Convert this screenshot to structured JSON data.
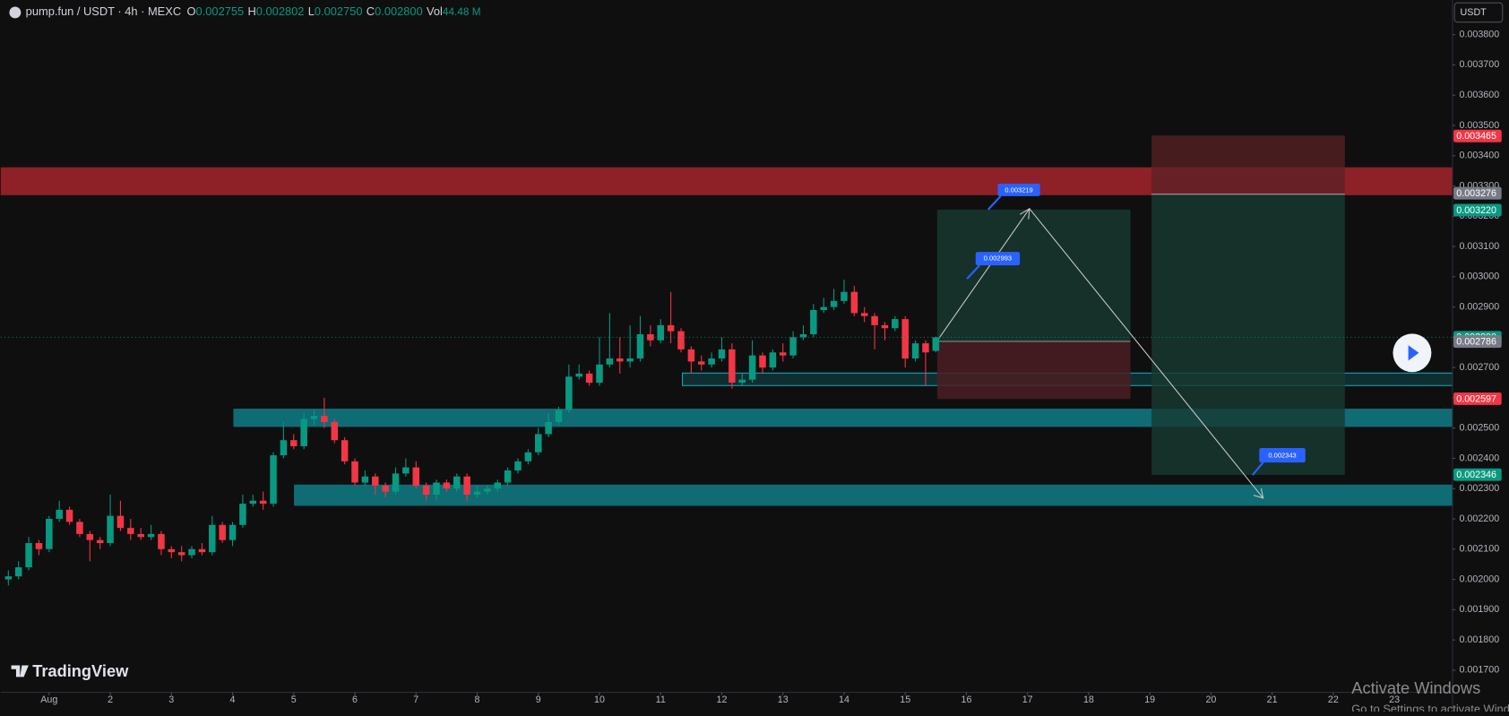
{
  "chart_data": {
    "type": "candlestick",
    "header": {
      "symbol": "pump.fun / USDT · 4h · MEXC",
      "o_label": "O",
      "o": "0.002755",
      "h_label": "H",
      "h": "0.002802",
      "l_label": "L",
      "l": "0.002750",
      "c_label": "C",
      "c": "0.002800",
      "vol_label": "Vol",
      "vol": "44.48 M"
    },
    "currency_button": "USDT",
    "up_color": "#089981",
    "down_color": "#f23645",
    "grid": false,
    "xlim": [
      -0.75,
      141.7
    ],
    "ylim": [
      0.001627,
      0.0039144
    ],
    "xticks": [
      {
        "value": 4,
        "label": "Aug"
      },
      {
        "value": 10,
        "label": "2"
      },
      {
        "value": 16,
        "label": "3"
      },
      {
        "value": 22,
        "label": "4"
      },
      {
        "value": 28,
        "label": "5"
      },
      {
        "value": 34,
        "label": "6"
      },
      {
        "value": 40,
        "label": "7"
      },
      {
        "value": 46,
        "label": "8"
      },
      {
        "value": 52,
        "label": "9"
      },
      {
        "value": 58,
        "label": "10"
      },
      {
        "value": 64,
        "label": "11"
      },
      {
        "value": 70,
        "label": "12"
      },
      {
        "value": 76,
        "label": "13"
      },
      {
        "value": 82,
        "label": "14"
      },
      {
        "value": 88,
        "label": "15"
      },
      {
        "value": 94,
        "label": "16"
      },
      {
        "value": 100,
        "label": "17"
      },
      {
        "value": 106,
        "label": "18"
      },
      {
        "value": 112,
        "label": "19"
      },
      {
        "value": 118,
        "label": "20"
      },
      {
        "value": 124,
        "label": "21"
      },
      {
        "value": 130,
        "label": "22"
      },
      {
        "value": 136,
        "label": "23"
      }
    ],
    "yticks": [
      {
        "value": 0.0017,
        "label": "0.001700"
      },
      {
        "value": 0.0018,
        "label": "0.001800"
      },
      {
        "value": 0.0019,
        "label": "0.001900"
      },
      {
        "value": 0.002,
        "label": "0.002000"
      },
      {
        "value": 0.0021,
        "label": "0.002100"
      },
      {
        "value": 0.0022,
        "label": "0.002200"
      },
      {
        "value": 0.0023,
        "label": "0.002300"
      },
      {
        "value": 0.0024,
        "label": "0.002400"
      },
      {
        "value": 0.0025,
        "label": "0.002500"
      },
      {
        "value": 0.0026,
        "label": "0.002600"
      },
      {
        "value": 0.0027,
        "label": "0.002700"
      },
      {
        "value": 0.0028,
        "label": "0.002800"
      },
      {
        "value": 0.0029,
        "label": "0.002900"
      },
      {
        "value": 0.003,
        "label": "0.003000"
      },
      {
        "value": 0.0031,
        "label": "0.003100"
      },
      {
        "value": 0.0032,
        "label": "0.003200"
      },
      {
        "value": 0.0033,
        "label": "0.003300"
      },
      {
        "value": 0.0034,
        "label": "0.003400"
      },
      {
        "value": 0.0035,
        "label": "0.003500"
      },
      {
        "value": 0.0036,
        "label": "0.003600"
      },
      {
        "value": 0.0037,
        "label": "0.003700"
      },
      {
        "value": 0.0038,
        "label": "0.003800"
      }
    ],
    "x": [
      0,
      1,
      2,
      3,
      4,
      5,
      6,
      7,
      8,
      9,
      10,
      11,
      12,
      13,
      14,
      15,
      16,
      17,
      18,
      19,
      20,
      21,
      22,
      23,
      24,
      25,
      26,
      27,
      28,
      29,
      30,
      31,
      32,
      33,
      34,
      35,
      36,
      37,
      38,
      39,
      40,
      41,
      42,
      43,
      44,
      45,
      46,
      47,
      48,
      49,
      50,
      51,
      52,
      53,
      54,
      55,
      56,
      57,
      58,
      59,
      60,
      61,
      62,
      63,
      64,
      65,
      66,
      67,
      68,
      69,
      70,
      71,
      72,
      73,
      74,
      75,
      76,
      77,
      78,
      79,
      80,
      81,
      82,
      83,
      84,
      85,
      86,
      87,
      88,
      89,
      90,
      91
    ],
    "open": [
      0.002,
      0.00201,
      0.00204,
      0.00212,
      0.0021,
      0.0022,
      0.00223,
      0.00219,
      0.00215,
      0.00213,
      0.00212,
      0.00221,
      0.00217,
      0.00215,
      0.00214,
      0.00215,
      0.0021,
      0.00209,
      0.00208,
      0.0021,
      0.00209,
      0.00218,
      0.00213,
      0.00218,
      0.00225,
      0.00226,
      0.00225,
      0.00241,
      0.00246,
      0.00244,
      0.00253,
      0.00254,
      0.00252,
      0.00246,
      0.00239,
      0.00232,
      0.00234,
      0.00231,
      0.00229,
      0.00235,
      0.00237,
      0.00231,
      0.00228,
      0.00232,
      0.0023,
      0.00234,
      0.00228,
      0.00229,
      0.0023,
      0.00232,
      0.00236,
      0.00239,
      0.00242,
      0.00248,
      0.00252,
      0.00256,
      0.00267,
      0.00268,
      0.00265,
      0.00271,
      0.00273,
      0.00272,
      0.00273,
      0.00281,
      0.00279,
      0.00284,
      0.00282,
      0.00276,
      0.00272,
      0.00271,
      0.00273,
      0.00276,
      0.00265,
      0.00266,
      0.00274,
      0.0027,
      0.00275,
      0.00274,
      0.0028,
      0.00281,
      0.00289,
      0.0029,
      0.00292,
      0.00295,
      0.00288,
      0.00287,
      0.00284,
      0.00283,
      0.00286,
      0.00273,
      0.00278,
      0.002755
    ],
    "high": [
      0.00203,
      0.00206,
      0.00214,
      0.00213,
      0.00221,
      0.00226,
      0.00224,
      0.0022,
      0.00216,
      0.00214,
      0.00228,
      0.00226,
      0.0022,
      0.00217,
      0.00218,
      0.00216,
      0.00211,
      0.00211,
      0.00211,
      0.00212,
      0.00221,
      0.00219,
      0.00219,
      0.00228,
      0.00228,
      0.00229,
      0.00242,
      0.00252,
      0.00248,
      0.00255,
      0.00256,
      0.0026,
      0.00253,
      0.00247,
      0.0024,
      0.00236,
      0.00235,
      0.00232,
      0.00237,
      0.0024,
      0.00239,
      0.00232,
      0.00233,
      0.00233,
      0.00235,
      0.00235,
      0.00231,
      0.00231,
      0.00233,
      0.00237,
      0.0024,
      0.00243,
      0.0025,
      0.00255,
      0.00257,
      0.00271,
      0.00271,
      0.00269,
      0.0028,
      0.00288,
      0.0028,
      0.00284,
      0.00287,
      0.00284,
      0.00286,
      0.00295,
      0.00283,
      0.00277,
      0.00274,
      0.00275,
      0.0028,
      0.00278,
      0.00268,
      0.00279,
      0.00275,
      0.00276,
      0.00278,
      0.00282,
      0.00284,
      0.00291,
      0.00293,
      0.00296,
      0.00299,
      0.00297,
      0.0029,
      0.00288,
      0.00285,
      0.00287,
      0.00287,
      0.00279,
      0.00279,
      0.002802
    ],
    "low": [
      0.00198,
      0.002,
      0.00203,
      0.00208,
      0.00209,
      0.00219,
      0.00218,
      0.00214,
      0.00206,
      0.0021,
      0.00211,
      0.00216,
      0.00213,
      0.00213,
      0.00213,
      0.00208,
      0.00207,
      0.00206,
      0.00207,
      0.00208,
      0.00208,
      0.00212,
      0.00211,
      0.00217,
      0.00224,
      0.00223,
      0.00224,
      0.0024,
      0.00243,
      0.00243,
      0.00251,
      0.0025,
      0.00245,
      0.00238,
      0.00231,
      0.00231,
      0.00228,
      0.00227,
      0.00228,
      0.00234,
      0.0023,
      0.00226,
      0.00226,
      0.00229,
      0.00229,
      0.00226,
      0.00227,
      0.00228,
      0.00229,
      0.00231,
      0.00235,
      0.00238,
      0.00241,
      0.00247,
      0.00251,
      0.00255,
      0.00266,
      0.00264,
      0.00264,
      0.0027,
      0.00268,
      0.0027,
      0.00272,
      0.00277,
      0.00278,
      0.00278,
      0.00275,
      0.00268,
      0.00269,
      0.0027,
      0.00272,
      0.00263,
      0.00264,
      0.00265,
      0.00268,
      0.00269,
      0.00272,
      0.00273,
      0.00279,
      0.0028,
      0.00288,
      0.00289,
      0.00291,
      0.00287,
      0.00285,
      0.00276,
      0.00279,
      0.00282,
      0.0027,
      0.00272,
      0.00264,
      0.00275
    ],
    "close": [
      0.00201,
      0.00204,
      0.00212,
      0.0021,
      0.0022,
      0.00223,
      0.00219,
      0.00215,
      0.00213,
      0.00212,
      0.00221,
      0.00217,
      0.00215,
      0.00214,
      0.00215,
      0.0021,
      0.00209,
      0.00208,
      0.0021,
      0.00209,
      0.00218,
      0.00213,
      0.00218,
      0.00225,
      0.00226,
      0.00225,
      0.00241,
      0.00246,
      0.00244,
      0.00253,
      0.00254,
      0.00252,
      0.00246,
      0.00239,
      0.00232,
      0.00234,
      0.00231,
      0.00229,
      0.00235,
      0.00237,
      0.00231,
      0.00228,
      0.00232,
      0.0023,
      0.00234,
      0.00228,
      0.00229,
      0.0023,
      0.00232,
      0.00236,
      0.00239,
      0.00242,
      0.00248,
      0.00252,
      0.00256,
      0.00267,
      0.00268,
      0.00265,
      0.00271,
      0.00273,
      0.00272,
      0.00273,
      0.00281,
      0.00279,
      0.00284,
      0.00282,
      0.00276,
      0.00272,
      0.00271,
      0.00273,
      0.00276,
      0.00265,
      0.00266,
      0.00274,
      0.0027,
      0.00275,
      0.00274,
      0.0028,
      0.00281,
      0.00289,
      0.0029,
      0.00292,
      0.00295,
      0.00288,
      0.00287,
      0.00284,
      0.00283,
      0.00286,
      0.00273,
      0.00278,
      0.00275,
      0.0028
    ],
    "price_labels": [
      {
        "value": 0.003465,
        "label": "0.003465",
        "color": "#f23645"
      },
      {
        "value": 0.003276,
        "label": "0.003276",
        "color": "#787b86"
      },
      {
        "value": 0.00322,
        "label": "0.003220",
        "color": "#089981"
      },
      {
        "value": 0.0028,
        "label": "0.002800",
        "color": "#089981"
      },
      {
        "value": 0.002786,
        "label": "0.002786",
        "color": "#787b86"
      },
      {
        "value": 0.002597,
        "label": "0.002597",
        "color": "#f23645"
      },
      {
        "value": 0.002346,
        "label": "0.002346",
        "color": "#089981"
      }
    ],
    "annotations": [
      "0.003219",
      "0.002993",
      "0.002343"
    ]
  },
  "watermark": "TradingView",
  "os_notice": {
    "title": "Activate Windows",
    "text": "Go to Settings to activate Windows."
  }
}
